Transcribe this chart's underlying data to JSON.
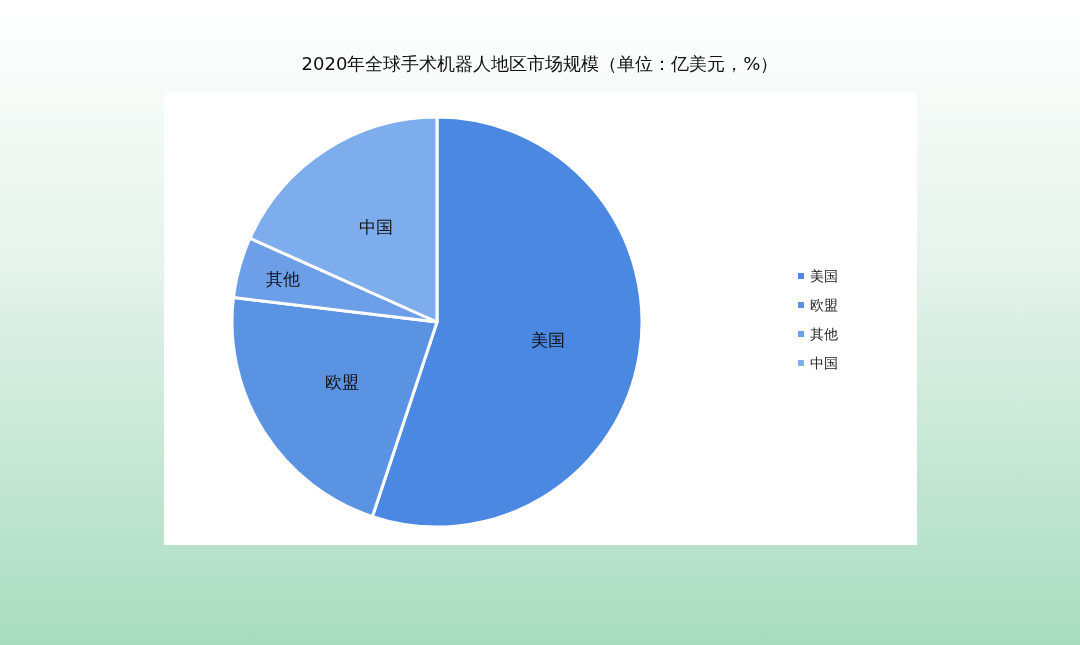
{
  "chart_data": {
    "type": "pie",
    "title": "2020年全球手术机器人地区市场规模（单位：亿美元，%）",
    "categories": [
      "美国",
      "欧盟",
      "其他",
      "中国"
    ],
    "values": [
      55.1,
      21.8,
      4.8,
      18.3
    ],
    "colors": [
      "#4a88e2",
      "#5b93e3",
      "#6c9fe8",
      "#7eaded"
    ],
    "legend": "right"
  }
}
